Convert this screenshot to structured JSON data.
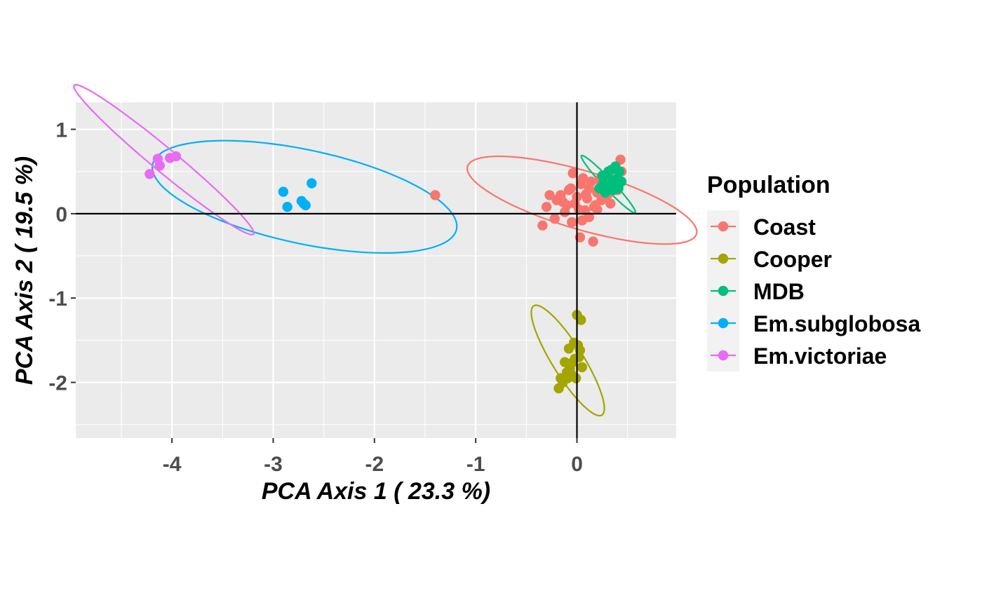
{
  "chart_data": {
    "type": "scatter",
    "xlabel": "PCA Axis 1 ( 23.3 %)",
    "ylabel": "PCA Axis 2 ( 19.5 %)",
    "xlim": [
      -4.95,
      0.98
    ],
    "ylim": [
      -2.66,
      1.32
    ],
    "x_ticks": [
      -4,
      -3,
      -2,
      -1,
      0
    ],
    "y_ticks": [
      -2,
      -1,
      0,
      1
    ],
    "x_tick_labels": [
      "-4",
      "-3",
      "-2",
      "-1",
      "0"
    ],
    "y_tick_labels": [
      "-2",
      "-1",
      "0",
      "1"
    ],
    "reference_lines": {
      "x": 0,
      "y": 0
    },
    "grid": true,
    "legend": {
      "title": "Population",
      "position": "right"
    },
    "series": [
      {
        "name": "Coast",
        "color": "#F8766D",
        "points": [
          [
            -1.4,
            0.22
          ],
          [
            -0.34,
            -0.14
          ],
          [
            -0.27,
            0.22
          ],
          [
            -0.2,
            0.16
          ],
          [
            -0.16,
            0.22
          ],
          [
            -0.12,
            0.02
          ],
          [
            -0.1,
            0.1
          ],
          [
            -0.08,
            0.28
          ],
          [
            -0.06,
            0.3
          ],
          [
            -0.04,
            0.48
          ],
          [
            -0.02,
            0.12
          ],
          [
            0.0,
            0.2
          ],
          [
            0.02,
            0.05
          ],
          [
            0.03,
            -0.28
          ],
          [
            0.04,
            0.35
          ],
          [
            0.06,
            0.42
          ],
          [
            0.08,
            0.04
          ],
          [
            0.1,
            0.18
          ],
          [
            0.12,
            0.3
          ],
          [
            0.14,
            0.38
          ],
          [
            0.16,
            -0.33
          ],
          [
            0.18,
            0.1
          ],
          [
            0.2,
            0.25
          ],
          [
            0.22,
            0.4
          ],
          [
            0.24,
            0.16
          ],
          [
            0.26,
            0.32
          ],
          [
            0.28,
            0.45
          ],
          [
            0.3,
            0.22
          ],
          [
            0.33,
            0.12
          ],
          [
            0.36,
            0.34
          ],
          [
            0.4,
            0.28
          ],
          [
            0.43,
            0.64
          ],
          [
            0.44,
            0.5
          ],
          [
            -0.22,
            -0.06
          ],
          [
            -0.05,
            -0.1
          ],
          [
            0.05,
            -0.08
          ],
          [
            0.12,
            -0.04
          ],
          [
            0.2,
            0.05
          ],
          [
            -0.3,
            0.08
          ],
          [
            0.09,
            0.23
          ],
          [
            -0.14,
            0.14
          ],
          [
            0.17,
            0.08
          ]
        ]
      },
      {
        "name": "Cooper",
        "color": "#A3A500",
        "points": [
          [
            -0.18,
            -2.07
          ],
          [
            -0.14,
            -2.0
          ],
          [
            -0.1,
            -1.88
          ],
          [
            -0.08,
            -1.6
          ],
          [
            -0.05,
            -1.77
          ],
          [
            -0.03,
            -1.53
          ],
          [
            -0.01,
            -1.95
          ],
          [
            0.0,
            -1.2
          ],
          [
            0.02,
            -1.7
          ],
          [
            0.04,
            -1.26
          ],
          [
            0.05,
            -1.82
          ],
          [
            -0.12,
            -1.76
          ],
          [
            -0.06,
            -1.9
          ],
          [
            0.01,
            -1.56
          ],
          [
            -0.16,
            -1.95
          ],
          [
            -0.09,
            -1.95
          ],
          [
            0.03,
            -1.62
          ],
          [
            -0.02,
            -1.72
          ],
          [
            -0.07,
            -1.84
          ]
        ]
      },
      {
        "name": "MDB",
        "color": "#00BF7D",
        "points": [
          [
            0.22,
            0.3
          ],
          [
            0.26,
            0.36
          ],
          [
            0.3,
            0.44
          ],
          [
            0.32,
            0.33
          ],
          [
            0.34,
            0.52
          ],
          [
            0.36,
            0.28
          ],
          [
            0.38,
            0.56
          ],
          [
            0.4,
            0.42
          ],
          [
            0.42,
            0.5
          ],
          [
            0.44,
            0.38
          ],
          [
            0.28,
            0.25
          ],
          [
            0.35,
            0.4
          ],
          [
            0.39,
            0.33
          ],
          [
            0.31,
            0.5
          ],
          [
            0.41,
            0.3
          ],
          [
            0.25,
            0.45
          ]
        ]
      },
      {
        "name": "Em.subglobosa",
        "color": "#00B0F6",
        "points": [
          [
            -2.9,
            0.26
          ],
          [
            -2.86,
            0.08
          ],
          [
            -2.72,
            0.15
          ],
          [
            -2.7,
            0.12
          ],
          [
            -2.68,
            0.1
          ],
          [
            -2.62,
            0.36
          ]
        ]
      },
      {
        "name": "Em.victoriae",
        "color": "#E76BF3",
        "points": [
          [
            -4.22,
            0.47
          ],
          [
            -4.14,
            0.65
          ],
          [
            -4.12,
            0.57
          ],
          [
            -4.02,
            0.66
          ],
          [
            -3.96,
            0.68
          ]
        ]
      }
    ],
    "ellipses": [
      {
        "series": "Coast",
        "cx": 0.05,
        "cy": 0.16,
        "rx": 1.2,
        "ry": 0.34,
        "angle_deg": -20
      },
      {
        "series": "Cooper",
        "cx": -0.09,
        "cy": -1.74,
        "rx": 0.73,
        "ry": 0.16,
        "angle_deg": -63
      },
      {
        "series": "MDB",
        "cx": 0.31,
        "cy": 0.35,
        "rx": 0.43,
        "ry": 0.05,
        "angle_deg": -52
      },
      {
        "series": "Em.subglobosa",
        "cx": -2.69,
        "cy": 0.2,
        "rx": 1.55,
        "ry": 0.55,
        "angle_deg": -15
      },
      {
        "series": "Em.victoriae",
        "cx": -4.08,
        "cy": 0.64,
        "rx": 1.25,
        "ry": 0.13,
        "angle_deg": -45
      }
    ]
  }
}
